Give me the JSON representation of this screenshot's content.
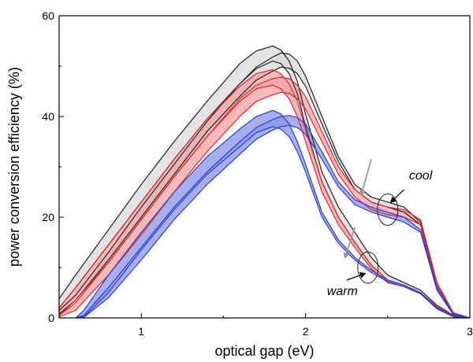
{
  "chart_data": {
    "type": "line",
    "title": "",
    "xlabel": "optical gap (eV)",
    "ylabel": "power conversion efficiency (%)",
    "xlim": [
      0.5,
      3.0
    ],
    "ylim": [
      0,
      60
    ],
    "xticks": [
      1,
      2,
      3
    ],
    "yticks": [
      0,
      20,
      40,
      60
    ],
    "grid": false,
    "colors": {
      "gray": "#222222",
      "gray_fill": "#d9d9d9",
      "red": "#e8262a",
      "red_fill": "#f4a3a3",
      "blue": "#2a3fd6",
      "blue_fill": "#8a96ea"
    },
    "series": [
      {
        "color_key": "gray",
        "x": [
          0.5,
          0.6,
          0.8,
          1.0,
          1.2,
          1.4,
          1.6,
          1.7,
          1.8,
          1.85,
          1.9,
          1.95,
          2.0,
          2.1,
          2.2,
          2.3,
          2.4,
          2.5,
          2.6,
          2.7,
          2.8,
          2.9,
          3.0
        ],
        "upper": [
          3.8,
          8.5,
          17.5,
          26.5,
          35.0,
          43.0,
          50.5,
          53.0,
          54.0,
          53.2,
          51.0,
          47.0,
          40.5,
          29.0,
          22.0,
          17.0,
          12.0,
          8.5,
          7.0,
          5.5,
          2.5,
          0.5,
          0.0
        ],
        "lower": [
          2.0,
          6.0,
          14.5,
          23.0,
          31.5,
          39.5,
          46.5,
          49.5,
          51.0,
          50.5,
          48.5,
          44.5,
          38.0,
          27.0,
          20.0,
          15.0,
          10.5,
          7.5,
          6.5,
          5.0,
          2.2,
          0.4,
          0.0
        ]
      },
      {
        "color_key": "gray",
        "x": [
          0.5,
          0.6,
          0.8,
          1.0,
          1.2,
          1.4,
          1.6,
          1.7,
          1.8,
          1.85,
          1.9,
          1.95,
          2.0,
          2.1,
          2.2,
          2.3,
          2.4,
          2.5,
          2.6,
          2.7,
          2.8,
          2.9,
          3.0
        ],
        "upper": [
          1.5,
          4.5,
          13.0,
          22.0,
          30.5,
          39.0,
          46.5,
          49.8,
          51.8,
          52.6,
          52.4,
          51.0,
          48.0,
          40.0,
          32.0,
          26.5,
          24.0,
          23.0,
          22.0,
          19.0,
          6.5,
          1.0,
          0.0
        ],
        "lower": [
          0.8,
          3.5,
          11.5,
          20.0,
          28.5,
          37.0,
          44.0,
          47.2,
          49.0,
          49.8,
          49.6,
          48.5,
          46.0,
          38.5,
          31.0,
          25.5,
          23.0,
          22.0,
          21.0,
          18.5,
          6.0,
          0.8,
          0.0
        ]
      },
      {
        "color_key": "red",
        "x": [
          0.5,
          0.6,
          0.8,
          1.0,
          1.2,
          1.4,
          1.6,
          1.7,
          1.8,
          1.85,
          1.9,
          1.95,
          2.0,
          2.1,
          2.2,
          2.3,
          2.4,
          2.5,
          2.6,
          2.7,
          2.8,
          2.9,
          3.0
        ],
        "upper": [
          2.0,
          6.0,
          14.5,
          23.0,
          31.5,
          39.5,
          46.0,
          48.5,
          49.3,
          48.5,
          46.5,
          43.0,
          37.5,
          27.0,
          20.0,
          15.0,
          10.5,
          7.5,
          6.5,
          5.0,
          2.2,
          0.4,
          0.0
        ],
        "lower": [
          0.5,
          3.5,
          11.0,
          19.5,
          28.0,
          36.0,
          43.0,
          45.5,
          46.2,
          45.5,
          43.5,
          40.0,
          35.0,
          25.0,
          18.5,
          14.0,
          9.8,
          7.0,
          6.2,
          4.8,
          2.0,
          0.3,
          0.0
        ]
      },
      {
        "color_key": "red",
        "x": [
          0.5,
          0.6,
          0.8,
          1.0,
          1.2,
          1.4,
          1.6,
          1.7,
          1.8,
          1.85,
          1.9,
          1.95,
          2.0,
          2.1,
          2.2,
          2.3,
          2.4,
          2.5,
          2.6,
          2.7,
          2.8,
          2.9,
          3.0
        ],
        "upper": [
          0.5,
          3.0,
          11.0,
          19.5,
          28.0,
          36.0,
          43.5,
          46.2,
          47.5,
          47.8,
          47.5,
          46.2,
          44.0,
          37.0,
          30.0,
          25.5,
          23.0,
          22.0,
          21.5,
          19.5,
          7.0,
          1.0,
          0.0
        ],
        "lower": [
          0.2,
          1.5,
          8.5,
          16.5,
          25.0,
          33.0,
          40.0,
          43.0,
          44.3,
          44.8,
          44.6,
          43.5,
          41.5,
          35.0,
          28.5,
          24.0,
          21.5,
          20.5,
          20.0,
          18.5,
          6.5,
          0.8,
          0.0
        ]
      },
      {
        "color_key": "blue",
        "x": [
          0.6,
          0.65,
          0.8,
          1.0,
          1.2,
          1.4,
          1.6,
          1.7,
          1.8,
          1.85,
          1.9,
          1.95,
          2.0,
          2.1,
          2.2,
          2.3,
          2.4,
          2.5,
          2.6,
          2.7,
          2.8,
          2.9,
          3.0
        ],
        "upper": [
          0.0,
          1.5,
          8.5,
          17.0,
          25.0,
          32.0,
          37.5,
          40.0,
          41.2,
          40.5,
          38.5,
          35.0,
          30.5,
          21.0,
          15.5,
          12.0,
          9.5,
          7.5,
          6.5,
          5.0,
          2.0,
          0.3,
          0.0
        ],
        "lower": [
          0.0,
          0.2,
          5.0,
          13.5,
          21.5,
          28.5,
          34.0,
          36.8,
          38.0,
          37.5,
          36.0,
          33.0,
          29.0,
          20.0,
          14.8,
          11.5,
          9.0,
          7.2,
          6.2,
          4.8,
          1.8,
          0.2,
          0.0
        ]
      },
      {
        "color_key": "blue",
        "x": [
          0.6,
          0.65,
          0.8,
          1.0,
          1.2,
          1.4,
          1.6,
          1.7,
          1.8,
          1.85,
          1.9,
          1.95,
          2.0,
          2.1,
          2.2,
          2.3,
          2.4,
          2.5,
          2.6,
          2.7,
          2.8,
          2.9,
          3.0
        ],
        "upper": [
          0.0,
          0.5,
          6.0,
          14.0,
          22.0,
          29.0,
          35.0,
          37.8,
          39.4,
          40.0,
          40.2,
          39.8,
          38.5,
          33.0,
          27.0,
          23.5,
          22.0,
          21.0,
          20.0,
          17.5,
          6.0,
          0.8,
          0.0
        ],
        "lower": [
          0.0,
          0.1,
          4.0,
          11.5,
          19.5,
          26.5,
          32.5,
          35.5,
          37.3,
          38.0,
          38.2,
          37.8,
          36.5,
          31.5,
          26.0,
          22.5,
          21.0,
          20.0,
          19.0,
          17.0,
          5.5,
          0.6,
          0.0
        ]
      }
    ],
    "annotations": [
      {
        "text": "cool",
        "x": 2.63,
        "y": 27.5,
        "ellipse_at": [
          2.5,
          21.5
        ],
        "arrow_from": [
          2.6,
          25.5
        ],
        "arrow_to": [
          2.52,
          23.0
        ]
      },
      {
        "text": "warm",
        "x": 2.13,
        "y": 4.5,
        "ellipse_at": [
          2.38,
          10.0
        ],
        "arrow_from": [
          2.25,
          7.5
        ],
        "arrow_to": [
          2.36,
          8.8
        ]
      }
    ],
    "gray_arrows": [
      {
        "from": [
          2.4,
          31.5
        ],
        "to": [
          2.34,
          24.5
        ]
      },
      {
        "from": [
          2.3,
          18.0
        ],
        "to": [
          2.24,
          12.0
        ]
      }
    ]
  }
}
